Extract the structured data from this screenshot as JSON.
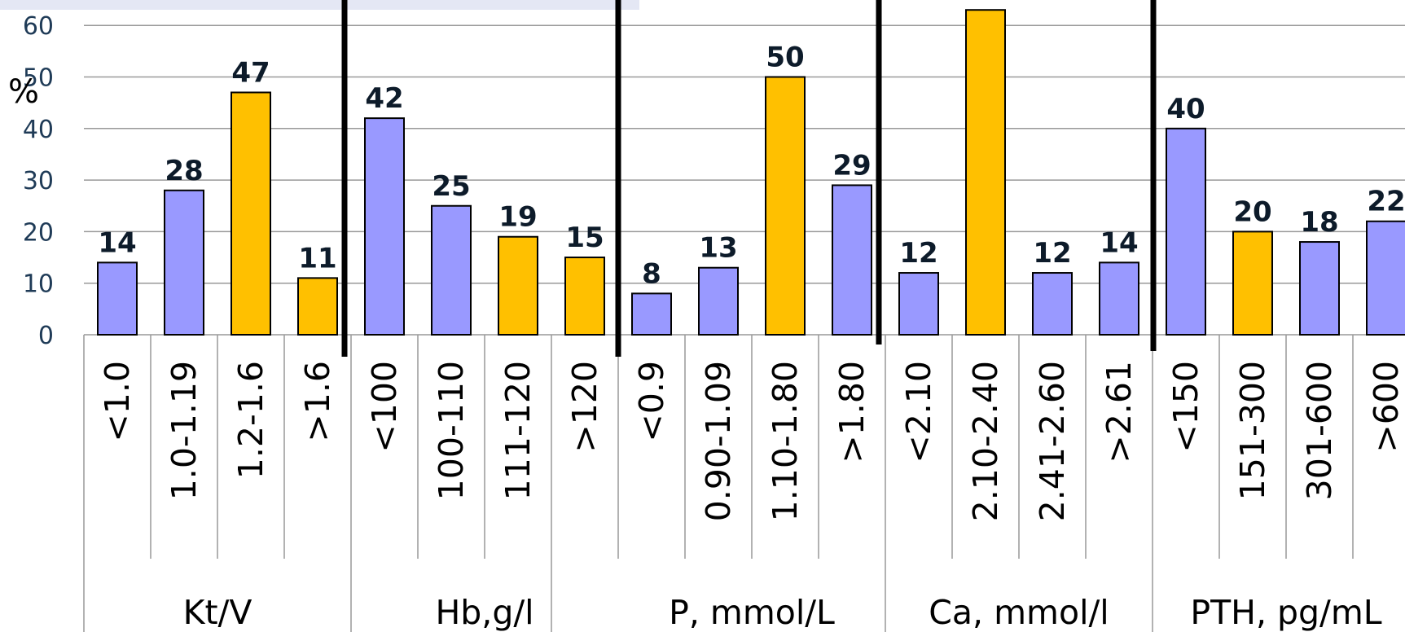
{
  "chart_data": {
    "type": "bar",
    "ylabel": "%",
    "ylim": [
      0,
      60
    ],
    "yticks": [
      0,
      10,
      20,
      30,
      40,
      50,
      60
    ],
    "groups": [
      {
        "label": "Kt/V",
        "categories": [
          "<1.0",
          "1.0-1.19",
          "1.2-1.6",
          ">1.6"
        ],
        "values": [
          14,
          28,
          47,
          11
        ],
        "highlight": [
          false,
          false,
          true,
          true
        ]
      },
      {
        "label": "Hb,g/l",
        "categories": [
          "<100",
          "100-110",
          "111-120",
          ">120"
        ],
        "values": [
          42,
          25,
          19,
          15
        ],
        "highlight": [
          false,
          false,
          true,
          true
        ]
      },
      {
        "label": "P, mmol/L",
        "categories": [
          "<0.9",
          "0.90-1.09",
          "1.10-1.80",
          ">1.80"
        ],
        "values": [
          8,
          13,
          50,
          29
        ],
        "highlight": [
          false,
          false,
          true,
          false
        ]
      },
      {
        "label": "Ca, mmol/l",
        "categories": [
          "<2.10",
          "2.10-2.40",
          "2.41-2.60",
          ">2.61"
        ],
        "values": [
          12,
          63,
          12,
          14
        ],
        "highlight": [
          false,
          true,
          false,
          false
        ]
      },
      {
        "label": "PTH, pg/mL",
        "categories": [
          "<150",
          "151-300",
          "301-600",
          ">600"
        ],
        "values": [
          40,
          20,
          18,
          22
        ],
        "highlight": [
          false,
          true,
          false,
          false
        ]
      }
    ],
    "colors": {
      "normal": "#9999ff",
      "highlight": "#ffc000",
      "grid": "#999999",
      "divider": "#000000"
    }
  }
}
